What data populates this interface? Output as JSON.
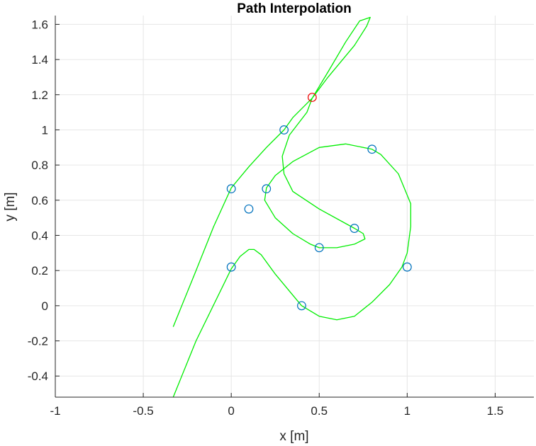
{
  "chart_data": {
    "type": "line",
    "title": "Path Interpolation",
    "xlabel": "x [m]",
    "ylabel": "y [m]",
    "xlim": [
      -1,
      1.72
    ],
    "ylim": [
      -0.52,
      1.65
    ],
    "grid": true,
    "x_ticks": [
      -1,
      -0.5,
      0,
      0.5,
      1,
      1.5
    ],
    "x_tick_labels": [
      "-1",
      "-0.5",
      "0",
      "0.5",
      "1",
      "1.5"
    ],
    "y_ticks": [
      -0.4,
      -0.2,
      0,
      0.2,
      0.4,
      0.6,
      0.8,
      1,
      1.2,
      1.4,
      1.6
    ],
    "y_tick_labels": [
      "-0.4",
      "-0.2",
      "0",
      "0.2",
      "0.4",
      "0.6",
      "0.8",
      "1",
      "1.2",
      "1.4",
      "1.6"
    ],
    "colors": {
      "path": "#00ee00",
      "waypoints": "#0072bd",
      "current": "#ee0000",
      "grid": "#e6e6e6",
      "axis": "#262626"
    },
    "series": [
      {
        "role": "interpolated-path",
        "x": [
          -0.33,
          -0.2,
          0,
          0.05,
          0.1,
          0.13,
          0.17,
          0.25,
          0.35,
          0.4,
          0.5,
          0.6,
          0.7,
          0.8,
          0.9,
          0.97,
          1.0,
          1.02,
          1.02,
          0.95,
          0.85,
          0.8,
          0.65,
          0.5,
          0.35,
          0.25,
          0.2,
          0.19,
          0.25,
          0.35,
          0.45,
          0.5,
          0.6,
          0.7,
          0.76,
          0.75,
          0.7,
          0.5,
          0.35,
          0.3,
          0.29,
          0.33,
          0.43,
          0.46,
          0.55,
          0.65,
          0.73,
          0.79,
          0.77,
          0.7,
          0.55,
          0.46,
          0.35,
          0.3,
          0.2,
          0.1,
          0,
          -0.1,
          -0.2,
          -0.33
        ],
        "y": [
          -0.52,
          -0.2,
          0.21,
          0.28,
          0.32,
          0.32,
          0.29,
          0.18,
          0.06,
          0,
          -0.06,
          -0.08,
          -0.06,
          0.02,
          0.12,
          0.22,
          0.3,
          0.45,
          0.58,
          0.75,
          0.86,
          0.89,
          0.92,
          0.9,
          0.82,
          0.74,
          0.67,
          0.6,
          0.5,
          0.41,
          0.35,
          0.33,
          0.33,
          0.35,
          0.38,
          0.41,
          0.44,
          0.55,
          0.65,
          0.75,
          0.85,
          0.97,
          1.1,
          1.18,
          1.33,
          1.5,
          1.62,
          1.64,
          1.59,
          1.48,
          1.3,
          1.18,
          1.07,
          1.0,
          0.9,
          0.79,
          0.67,
          0.45,
          0.2,
          -0.12
        ]
      },
      {
        "role": "waypoints",
        "x": [
          0.4,
          1.0,
          0.8,
          0.2,
          0.5,
          0.7,
          0.3,
          0.0,
          0.1,
          0.0
        ],
        "y": [
          0.0,
          0.22,
          0.89,
          0.665,
          0.33,
          0.44,
          1.0,
          0.665,
          0.55,
          0.22
        ]
      },
      {
        "role": "current-point",
        "x": [
          0.46
        ],
        "y": [
          1.185
        ]
      }
    ]
  }
}
